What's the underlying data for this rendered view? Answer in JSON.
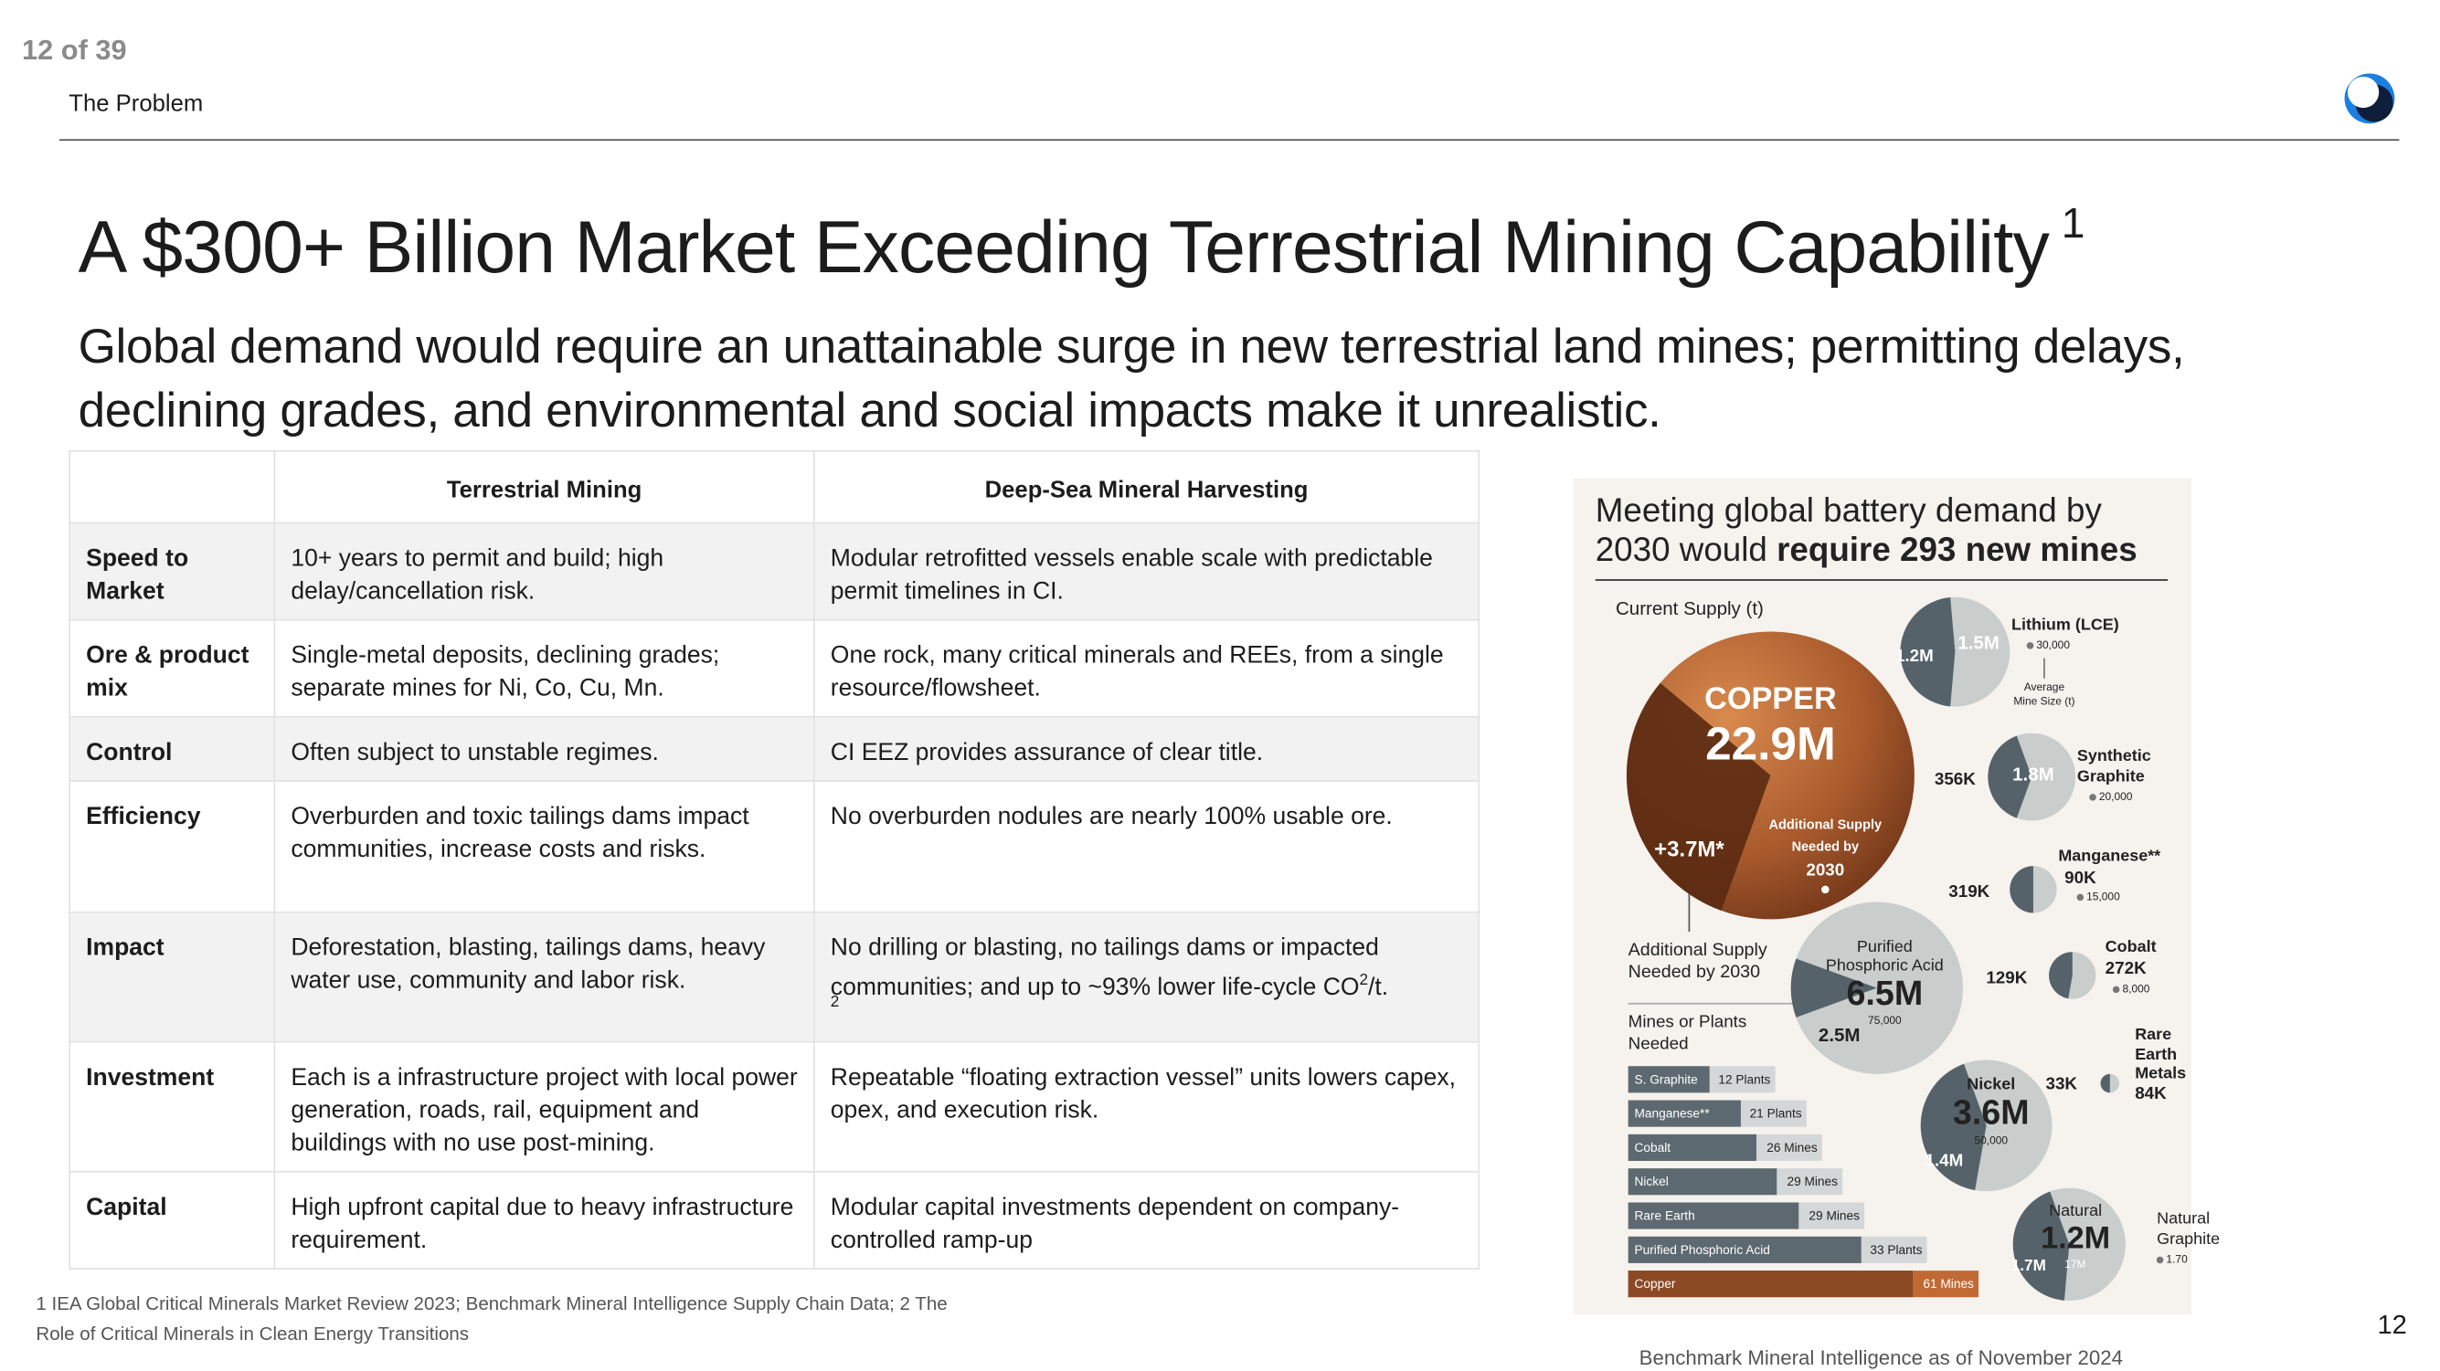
{
  "header": {
    "page_counter": "12 of 39",
    "section": "The Problem"
  },
  "title": "A $300+ Billion Market Exceeding Terrestrial Mining Capability",
  "title_superscript": "1",
  "subtitle": "Global demand would require an unattainable surge in new terrestrial land mines; permitting delays, declining grades, and environmental and social impacts make it unrealistic.",
  "table": {
    "columns": [
      "Terrestrial Mining",
      "Deep-Sea Mineral Harvesting"
    ],
    "rows": [
      [
        "Speed to Market",
        "10+ years to permit and build; high delay/cancellation risk.",
        "Modular retrofitted vessels enable scale with predictable permit timelines in CI."
      ],
      [
        "Ore & product mix",
        "Single-metal deposits, declining grades; separate mines for Ni, Co, Cu, Mn.",
        "One rock, many critical minerals and REEs,  from a single resource/flowsheet."
      ],
      [
        "Control",
        "Often subject to unstable regimes.",
        "CI EEZ provides assurance of clear title."
      ],
      [
        "Efficiency",
        "Overburden and toxic tailings dams impact communities, increase costs and risks.",
        "No overburden nodules are nearly 100% usable ore."
      ],
      [
        "Impact",
        "Deforestation, blasting, tailings dams, heavy water use, community and labor risk.",
        {
          "text": "No drilling or blasting, no tailings dams or impacted communities; and up to ~93% lower life-cycle CO",
          "sup": "2",
          "after": "/t.",
          "note": "2"
        }
      ],
      [
        "Investment",
        "Each is a  infrastructure project with local power generation, roads, rail, equipment and buildings with no use post-mining.",
        "Repeatable “floating extraction vessel” units lowers capex, opex, and execution risk."
      ],
      [
        "Capital",
        "High upfront capital due to heavy infrastructure requirement.",
        "Modular capital investments dependent on company-controlled ramp-up"
      ]
    ]
  },
  "infographic": {
    "title": {
      "line1": "Meeting global battery demand by",
      "line2_plain": "2030 would ",
      "line2_bold": "require 293 new mines"
    },
    "current_supply_label": "Current Supply (t)",
    "copper": {
      "name": "COPPER",
      "current": "22.9M",
      "additional": "+3.7M*",
      "note": [
        "Additional Supply",
        "Needed by",
        "2030"
      ]
    },
    "additional_label": [
      "Additional Supply",
      "Needed by 2030"
    ],
    "mines_label": [
      "Mines or Plants",
      "Needed"
    ],
    "mine_size_note": [
      "Average",
      "Mine Size (t)"
    ],
    "minerals": [
      {
        "name": [
          "Lithium (LCE)"
        ],
        "current": "1.5M",
        "additional": "1.2M",
        "mine_size": "30,000"
      },
      {
        "name": [
          "Synthetic",
          "Graphite"
        ],
        "current": "1.8M",
        "additional": "356K",
        "mine_size": "20,000"
      },
      {
        "name": [
          "Manganese**"
        ],
        "current": "90K",
        "additional": "319K",
        "mine_size": "15,000"
      },
      {
        "name": [
          "Cobalt"
        ],
        "current": "272K",
        "additional": "129K",
        "mine_size": "8,000"
      },
      {
        "name": [
          "Rare",
          "Earth",
          "Metals"
        ],
        "current": "84K",
        "additional": "33K"
      },
      {
        "name": [
          "Purified",
          "Phosphoric Acid"
        ],
        "current": "6.5M",
        "additional": "2.5M",
        "mine_size": "75,000"
      },
      {
        "name": [
          "Nickel"
        ],
        "current": "3.6M",
        "additional": "1.4M",
        "mine_size": "50,000"
      },
      {
        "name": [
          "Natural",
          "Graphite"
        ],
        "inner_name": "Natural",
        "current": "1.2M",
        "additional": "1.7M",
        "inner_size": "17M",
        "mine_size": "1.70"
      }
    ],
    "bars": [
      {
        "label": "S. Graphite",
        "count": "12 Plants"
      },
      {
        "label": "Manganese**",
        "count": "21 Plants"
      },
      {
        "label": "Cobalt",
        "count": "26 Mines"
      },
      {
        "label": "Nickel",
        "count": "29 Mines"
      },
      {
        "label": "Rare Earth",
        "count": "29 Mines"
      },
      {
        "label": "Purified Phosphoric Acid",
        "count": "33 Plants"
      },
      {
        "label": "Copper",
        "count": "61 Mines"
      }
    ]
  },
  "footnote": "1 IEA Global Critical Minerals Market Review 2023; Benchmark Mineral Intelligence Supply Chain Data; 2 The Role of Critical Minerals in Clean Energy Transitions",
  "source": "Benchmark Mineral Intelligence as of November 2024",
  "page_number": "12"
}
